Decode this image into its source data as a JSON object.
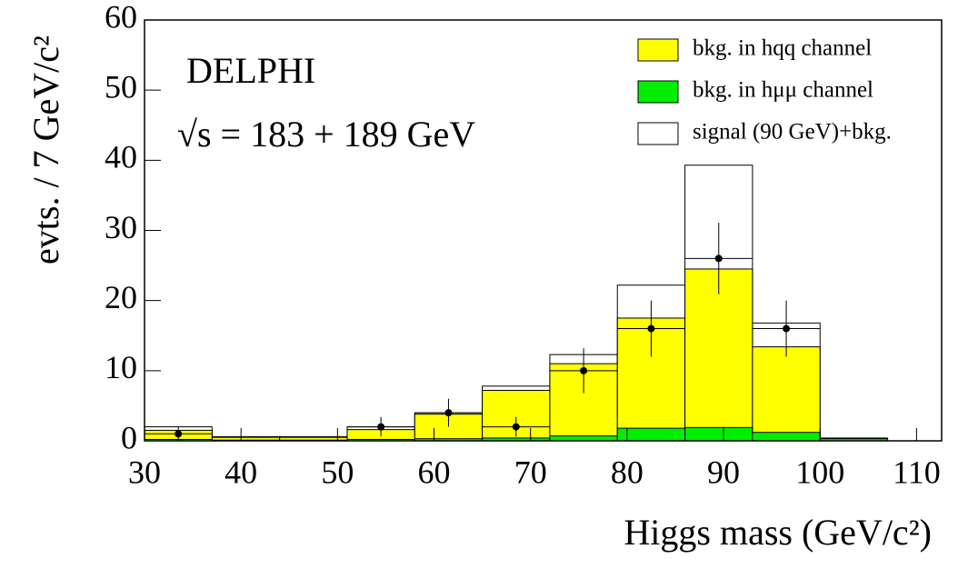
{
  "chart_data": {
    "type": "histogram",
    "x_label": "Higgs mass  (GeV/c²)",
    "y_label": "evts. / 7 GeV/c²",
    "annotations": [
      "DELPHI",
      "√s = 183 + 189 GeV"
    ],
    "bins": [
      30,
      37,
      44,
      51,
      58,
      65,
      72,
      79,
      86,
      93,
      100,
      107
    ],
    "series": [
      {
        "name": "signal (90 GeV)+bkg.",
        "color": "#ffffff",
        "values": [
          2.0,
          0.6,
          0.6,
          2.0,
          4.0,
          7.8,
          12.3,
          22.2,
          39.3,
          16.8,
          0.4
        ]
      },
      {
        "name": "bkg. in hqq channel",
        "color": "#ffff00",
        "values": [
          1.5,
          0.5,
          0.5,
          1.6,
          3.8,
          7.2,
          11.0,
          17.5,
          24.5,
          13.4,
          0.3
        ]
      },
      {
        "name": "bkg. in hμμ channel",
        "color": "#00ee00",
        "values": [
          0.2,
          0.1,
          0.1,
          0.2,
          0.3,
          0.4,
          0.7,
          1.8,
          1.9,
          1.2,
          0.3
        ]
      }
    ],
    "points": {
      "x": [
        33.5,
        54.5,
        61.5,
        68.5,
        75.5,
        82.5,
        89.5,
        96.5
      ],
      "values": [
        1,
        2,
        4,
        2,
        10,
        16,
        26,
        16
      ],
      "errors": [
        1,
        1.4,
        2,
        1.4,
        3.2,
        4,
        5.1,
        4
      ],
      "color": "#000000"
    },
    "xlim": [
      30,
      112.6
    ],
    "ylim": [
      0,
      60
    ],
    "xticks": [
      30,
      40,
      50,
      60,
      70,
      80,
      90,
      100,
      110
    ],
    "yticks": [
      0,
      10,
      20,
      30,
      40,
      50,
      60
    ],
    "legend": "upper right"
  }
}
